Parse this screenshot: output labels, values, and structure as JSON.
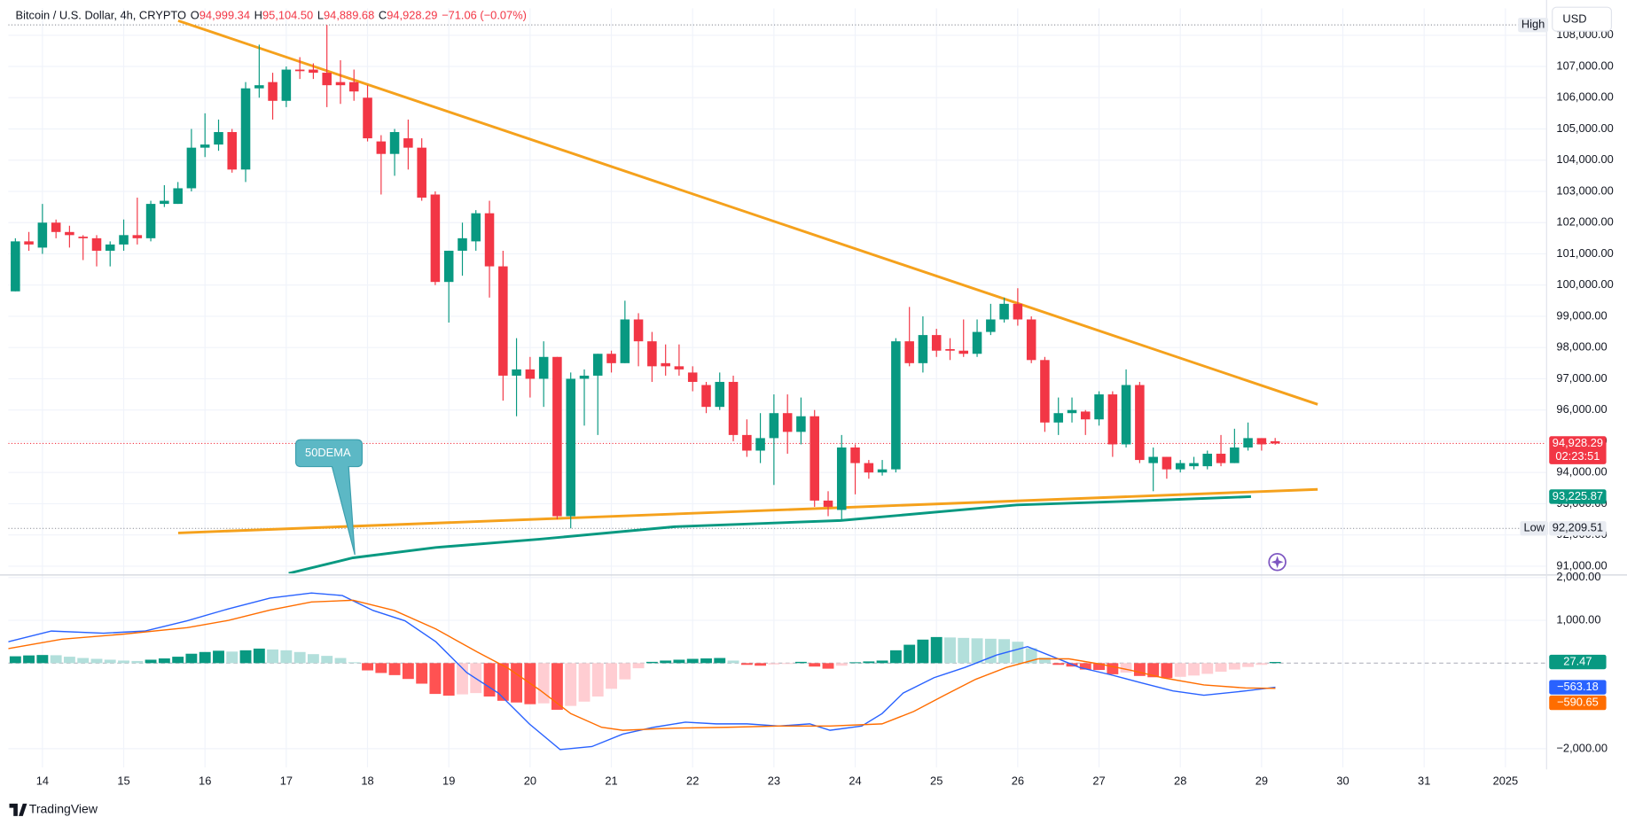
{
  "header": {
    "symbol": "Bitcoin / U.S. Dollar, 4h, CRYPTO",
    "ohlc": [
      {
        "key": "O",
        "value": "94,999.34"
      },
      {
        "key": "H",
        "value": "95,104.50"
      },
      {
        "key": "L",
        "value": "94,889.68"
      },
      {
        "key": "C",
        "value": "94,928.29"
      }
    ],
    "change": "−71.06 (−0.07%)",
    "currency": "USD"
  },
  "brand": "TradingView",
  "chart_data": [
    {
      "type": "candlestick",
      "xlim": [
        13.58,
        32.5
      ],
      "ylim": [
        90767,
        108863
      ],
      "grid": true,
      "yticks": [
        {
          "value": 91000,
          "label": "91,000.00"
        },
        {
          "value": 92000,
          "label": "92,000.00"
        },
        {
          "value": 93000,
          "label": "93,000.00"
        },
        {
          "value": 94000,
          "label": "94,000.00"
        },
        {
          "value": 95000,
          "label": "95,000.00"
        },
        {
          "value": 96000,
          "label": "96,000.00"
        },
        {
          "value": 97000,
          "label": "97,000.00"
        },
        {
          "value": 98000,
          "label": "98,000.00"
        },
        {
          "value": 99000,
          "label": "99,000.00"
        },
        {
          "value": 100000,
          "label": "100,000.00"
        },
        {
          "value": 101000,
          "label": "101,000.00"
        },
        {
          "value": 102000,
          "label": "102,000.00"
        },
        {
          "value": 103000,
          "label": "103,000.00"
        },
        {
          "value": 104000,
          "label": "104,000.00"
        },
        {
          "value": 105000,
          "label": "105,000.00"
        },
        {
          "value": 106000,
          "label": "106,000.00"
        },
        {
          "value": 107000,
          "label": "107,000.00"
        },
        {
          "value": 108000,
          "label": "108,000.00"
        }
      ],
      "candles": {
        "x": [
          13.667,
          13.833,
          14,
          14.167,
          14.333,
          14.5,
          14.667,
          14.833,
          15,
          15.167,
          15.333,
          15.5,
          15.667,
          15.833,
          16,
          16.167,
          16.333,
          16.5,
          16.667,
          16.833,
          17,
          17.167,
          17.333,
          17.5,
          17.667,
          17.833,
          18,
          18.167,
          18.333,
          18.5,
          18.667,
          18.833,
          19,
          19.167,
          19.333,
          19.5,
          19.667,
          19.833,
          20,
          20.167,
          20.333,
          20.5,
          20.667,
          20.833,
          21,
          21.167,
          21.333,
          21.5,
          21.667,
          21.833,
          22,
          22.167,
          22.333,
          22.5,
          22.667,
          22.833,
          23,
          23.167,
          23.333,
          23.5,
          23.667,
          23.833,
          24,
          24.167,
          24.333,
          24.5,
          24.667,
          24.833,
          25,
          25.167,
          25.333,
          25.5,
          25.667,
          25.833,
          26,
          26.167,
          26.333,
          26.5,
          26.667,
          26.833,
          27,
          27.167,
          27.333,
          27.5,
          27.667,
          27.833,
          28,
          28.167,
          28.333,
          28.5,
          28.667,
          28.833,
          29,
          29.167
        ],
        "open": [
          99800,
          101400,
          101200,
          102000,
          101700,
          101550,
          101500,
          101100,
          101300,
          101600,
          101500,
          102600,
          102600,
          103100,
          104400,
          104500,
          104900,
          103700,
          106300,
          106500,
          105900,
          106900,
          106900,
          106800,
          106500,
          106500,
          106000,
          104600,
          104200,
          104700,
          104400,
          102900,
          100100,
          101100,
          101400,
          102300,
          100600,
          97100,
          97300,
          97000,
          97700,
          92600,
          97000,
          97100,
          97800,
          97500,
          98900,
          98200,
          97500,
          97400,
          97200,
          96800,
          96100,
          96900,
          95200,
          94700,
          95100,
          95900,
          95300,
          95800,
          93100,
          92800,
          94800,
          94300,
          94000,
          94100,
          98200,
          97500,
          98400,
          97950,
          97900,
          97800,
          98500,
          98900,
          99400,
          98900,
          97600,
          95600,
          95900,
          95950,
          95700,
          96500,
          94900,
          96800,
          94300,
          94500,
          94100,
          94200,
          94200,
          94600,
          94300,
          94800,
          95100,
          94999.34
        ],
        "high": [
          101500,
          101700,
          102600,
          102100,
          101900,
          101600,
          101600,
          101400,
          102100,
          102800,
          102700,
          103200,
          103300,
          105000,
          105500,
          105300,
          105000,
          106500,
          107700,
          106800,
          107000,
          107300,
          107100,
          108330,
          107200,
          106900,
          106400,
          104800,
          105000,
          105300,
          104700,
          103000,
          101100,
          102000,
          102400,
          102700,
          101100,
          98300,
          97700,
          98200,
          97700,
          97200,
          97300,
          97800,
          97900,
          99500,
          99100,
          98500,
          98100,
          98100,
          97400,
          96900,
          97200,
          97100,
          95700,
          95900,
          96500,
          96500,
          96400,
          96000,
          93400,
          95200,
          94900,
          94400,
          94400,
          98300,
          99300,
          99000,
          98600,
          98300,
          98900,
          98900,
          99400,
          99600,
          99900,
          99000,
          97700,
          96400,
          96400,
          96000,
          96600,
          96600,
          97300,
          96900,
          94800,
          94500,
          94400,
          94500,
          94700,
          95200,
          95400,
          95600,
          95100,
          95104.5
        ],
        "low": [
          99800,
          101100,
          101000,
          101500,
          101200,
          100800,
          100600,
          100600,
          101100,
          101300,
          101400,
          102500,
          102600,
          103000,
          104100,
          104300,
          103600,
          103300,
          106000,
          105300,
          105700,
          106600,
          106600,
          105700,
          105800,
          105900,
          104600,
          102900,
          103500,
          103700,
          102700,
          100000,
          98800,
          100300,
          101100,
          99600,
          96300,
          95800,
          96400,
          96100,
          92500,
          92209.51,
          95500,
          95200,
          97200,
          97500,
          97400,
          96900,
          97100,
          97100,
          96600,
          95900,
          96000,
          95000,
          94500,
          94300,
          93600,
          94600,
          94900,
          92900,
          92600,
          92500,
          93300,
          93800,
          93900,
          94000,
          97400,
          97200,
          97700,
          97600,
          97700,
          97700,
          98400,
          98800,
          98700,
          97500,
          95300,
          95200,
          95600,
          95200,
          95500,
          94500,
          94800,
          94300,
          93400,
          93800,
          94000,
          94100,
          94100,
          94200,
          94300,
          94700,
          94700,
          94889.68
        ],
        "close": [
          101400,
          101300,
          102000,
          101700,
          101600,
          101500,
          101100,
          101300,
          101600,
          101500,
          102600,
          102700,
          103100,
          104400,
          104500,
          104900,
          103700,
          106300,
          106400,
          105900,
          106900,
          106850,
          106800,
          106400,
          106400,
          106200,
          104700,
          104200,
          104900,
          104400,
          102800,
          100100,
          101100,
          101500,
          102300,
          100600,
          97100,
          97300,
          97000,
          97700,
          92600,
          97000,
          97100,
          97800,
          97500,
          98900,
          98200,
          97400,
          97400,
          97300,
          96900,
          96100,
          96900,
          95200,
          94700,
          95100,
          95900,
          95300,
          95800,
          93100,
          92900,
          94800,
          94300,
          94000,
          94100,
          98200,
          97500,
          98400,
          97900,
          97900,
          97800,
          98500,
          98900,
          99400,
          98900,
          97600,
          95600,
          95900,
          96000,
          95700,
          96500,
          94900,
          96800,
          94400,
          94500,
          94100,
          94300,
          94300,
          94600,
          94300,
          94800,
          95100,
          94900,
          94928.29
        ],
        "up_color": "#089981",
        "down_color": "#f23645",
        "last_label": "94,928.29",
        "countdown": "02:23:51"
      },
      "high_label": "High",
      "low_label": "Low",
      "low_value_label": "92,209.51",
      "ema": {
        "name": "50DEMA",
        "color": "#089981",
        "x": [
          17.03,
          17.82,
          18.84,
          20.12,
          21.78,
          23.82,
          25.99,
          27.52,
          28.87
        ],
        "values": [
          90770,
          91267,
          91599,
          91865,
          92263,
          92462,
          92960,
          93093,
          93225.87
        ],
        "value_label": "93,225.87"
      },
      "drawings": [
        {
          "color": "#f5a11c",
          "x": [
            15.67,
            29.69
          ],
          "y": [
            108465,
            96181
          ]
        },
        {
          "color": "#f5a11c",
          "x": [
            15.67,
            29.69
          ],
          "y": [
            92064,
            93458
          ]
        }
      ]
    },
    {
      "type": "macd",
      "xlim": [
        13.58,
        32.5
      ],
      "ylim": [
        -2436,
        2024
      ],
      "grid": true,
      "yticks": [
        {
          "value": 2000,
          "label": "2,000.00"
        },
        {
          "value": 1000,
          "label": "1,000.00"
        },
        {
          "value": -2000,
          "label": "−2,000.00"
        }
      ],
      "xticks": [
        14,
        15,
        16,
        17,
        18,
        19,
        20,
        21,
        22,
        23,
        24,
        25,
        26,
        27,
        28,
        29,
        30,
        31,
        {
          "value": 32,
          "label": "2025"
        }
      ],
      "histogram": {
        "values": [
          160,
          180,
          190,
          185,
          150,
          120,
          100,
          80,
          60,
          50,
          80,
          110,
          150,
          220,
          260,
          290,
          270,
          300,
          340,
          320,
          300,
          260,
          210,
          170,
          120,
          20,
          -170,
          -230,
          -280,
          -370,
          -480,
          -720,
          -760,
          -730,
          -700,
          -780,
          -880,
          -920,
          -960,
          -940,
          -1090,
          -1000,
          -900,
          -780,
          -600,
          -380,
          -120,
          30,
          60,
          80,
          100,
          110,
          120,
          60,
          -40,
          -60,
          -30,
          -20,
          30,
          -80,
          -130,
          -60,
          20,
          40,
          60,
          300,
          430,
          550,
          610,
          600,
          590,
          580,
          570,
          560,
          500,
          350,
          130,
          -40,
          -80,
          -150,
          -160,
          -260,
          -220,
          -300,
          -330,
          -350,
          -320,
          -290,
          -250,
          -200,
          -150,
          -90,
          -40,
          27.47
        ],
        "colors": {
          "up_rising": "#089981",
          "up_falling": "#b2dfdb",
          "down_falling": "#ff5252",
          "down_rising": "#ffcdd2"
        }
      },
      "series": [
        {
          "color": "#2962ff",
          "x": [
            13.58,
            14.11,
            14.75,
            15.26,
            15.78,
            16.29,
            16.8,
            17.31,
            17.69,
            18.07,
            18.46,
            18.84,
            19.22,
            19.61,
            19.99,
            20.37,
            20.76,
            21.14,
            21.52,
            21.91,
            22.29,
            22.67,
            23.06,
            23.44,
            23.69,
            24.08,
            24.33,
            24.59,
            24.97,
            25.35,
            25.74,
            26.12,
            26.38,
            26.76,
            27.14,
            27.52,
            27.91,
            28.29,
            28.8,
            29.17
          ],
          "values": [
            500,
            750,
            700,
            750,
            990,
            1270,
            1520,
            1640,
            1580,
            1230,
            990,
            500,
            -220,
            -700,
            -1420,
            -2020,
            -1950,
            -1660,
            -1500,
            -1380,
            -1420,
            -1420,
            -1470,
            -1420,
            -1570,
            -1470,
            -1180,
            -700,
            -340,
            -100,
            190,
            385,
            190,
            -100,
            -270,
            -460,
            -650,
            -750,
            -650,
            -563.18
          ],
          "value_label": "−563.18"
        },
        {
          "color": "#ff6d00",
          "x": [
            13.58,
            14.24,
            15.01,
            15.78,
            16.29,
            16.8,
            17.31,
            17.82,
            18.33,
            18.84,
            19.35,
            19.73,
            20.12,
            20.5,
            20.88,
            21.14,
            21.78,
            22.42,
            23.06,
            23.69,
            24.33,
            24.72,
            25.1,
            25.48,
            25.86,
            26.25,
            26.63,
            27.01,
            27.4,
            27.78,
            28.29,
            28.8,
            29.17
          ],
          "values": [
            340,
            560,
            680,
            830,
            1000,
            1240,
            1430,
            1470,
            1230,
            800,
            260,
            -120,
            -630,
            -1180,
            -1500,
            -1570,
            -1520,
            -1500,
            -1470,
            -1470,
            -1420,
            -1130,
            -750,
            -380,
            -100,
            100,
            100,
            -20,
            -170,
            -340,
            -510,
            -580,
            -590.65
          ],
          "value_label": "−590.65"
        }
      ]
    }
  ]
}
